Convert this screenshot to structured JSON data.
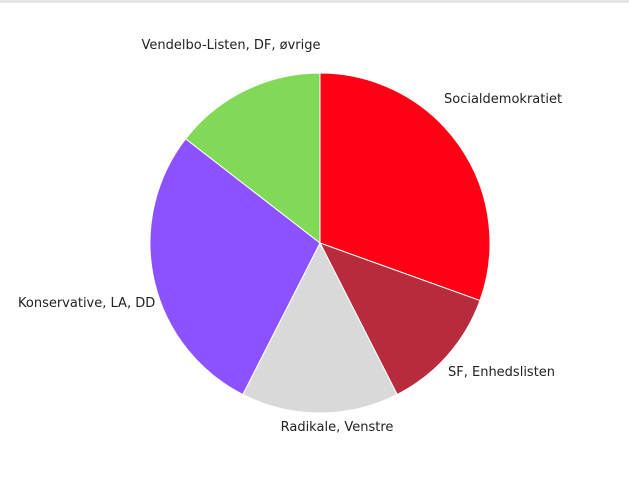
{
  "chart_data": {
    "type": "pie",
    "title": "",
    "slices": [
      {
        "label": "Socialdemokratiet",
        "value": 30.5,
        "color": "#ff0015"
      },
      {
        "label": "SF, Enhedslisten",
        "value": 12.0,
        "color": "#b72b3c"
      },
      {
        "label": "Radikale, Venstre",
        "value": 15.0,
        "color": "#d9d9d9"
      },
      {
        "label": "Konservative, LA, DD",
        "value": 28.0,
        "color": "#8d52ff"
      },
      {
        "label": "Vendelbo-Listen, DF, øvrige",
        "value": 14.5,
        "color": "#81d957"
      }
    ],
    "start_angle_deg": 0,
    "direction": "clockwise",
    "legend": "none"
  }
}
